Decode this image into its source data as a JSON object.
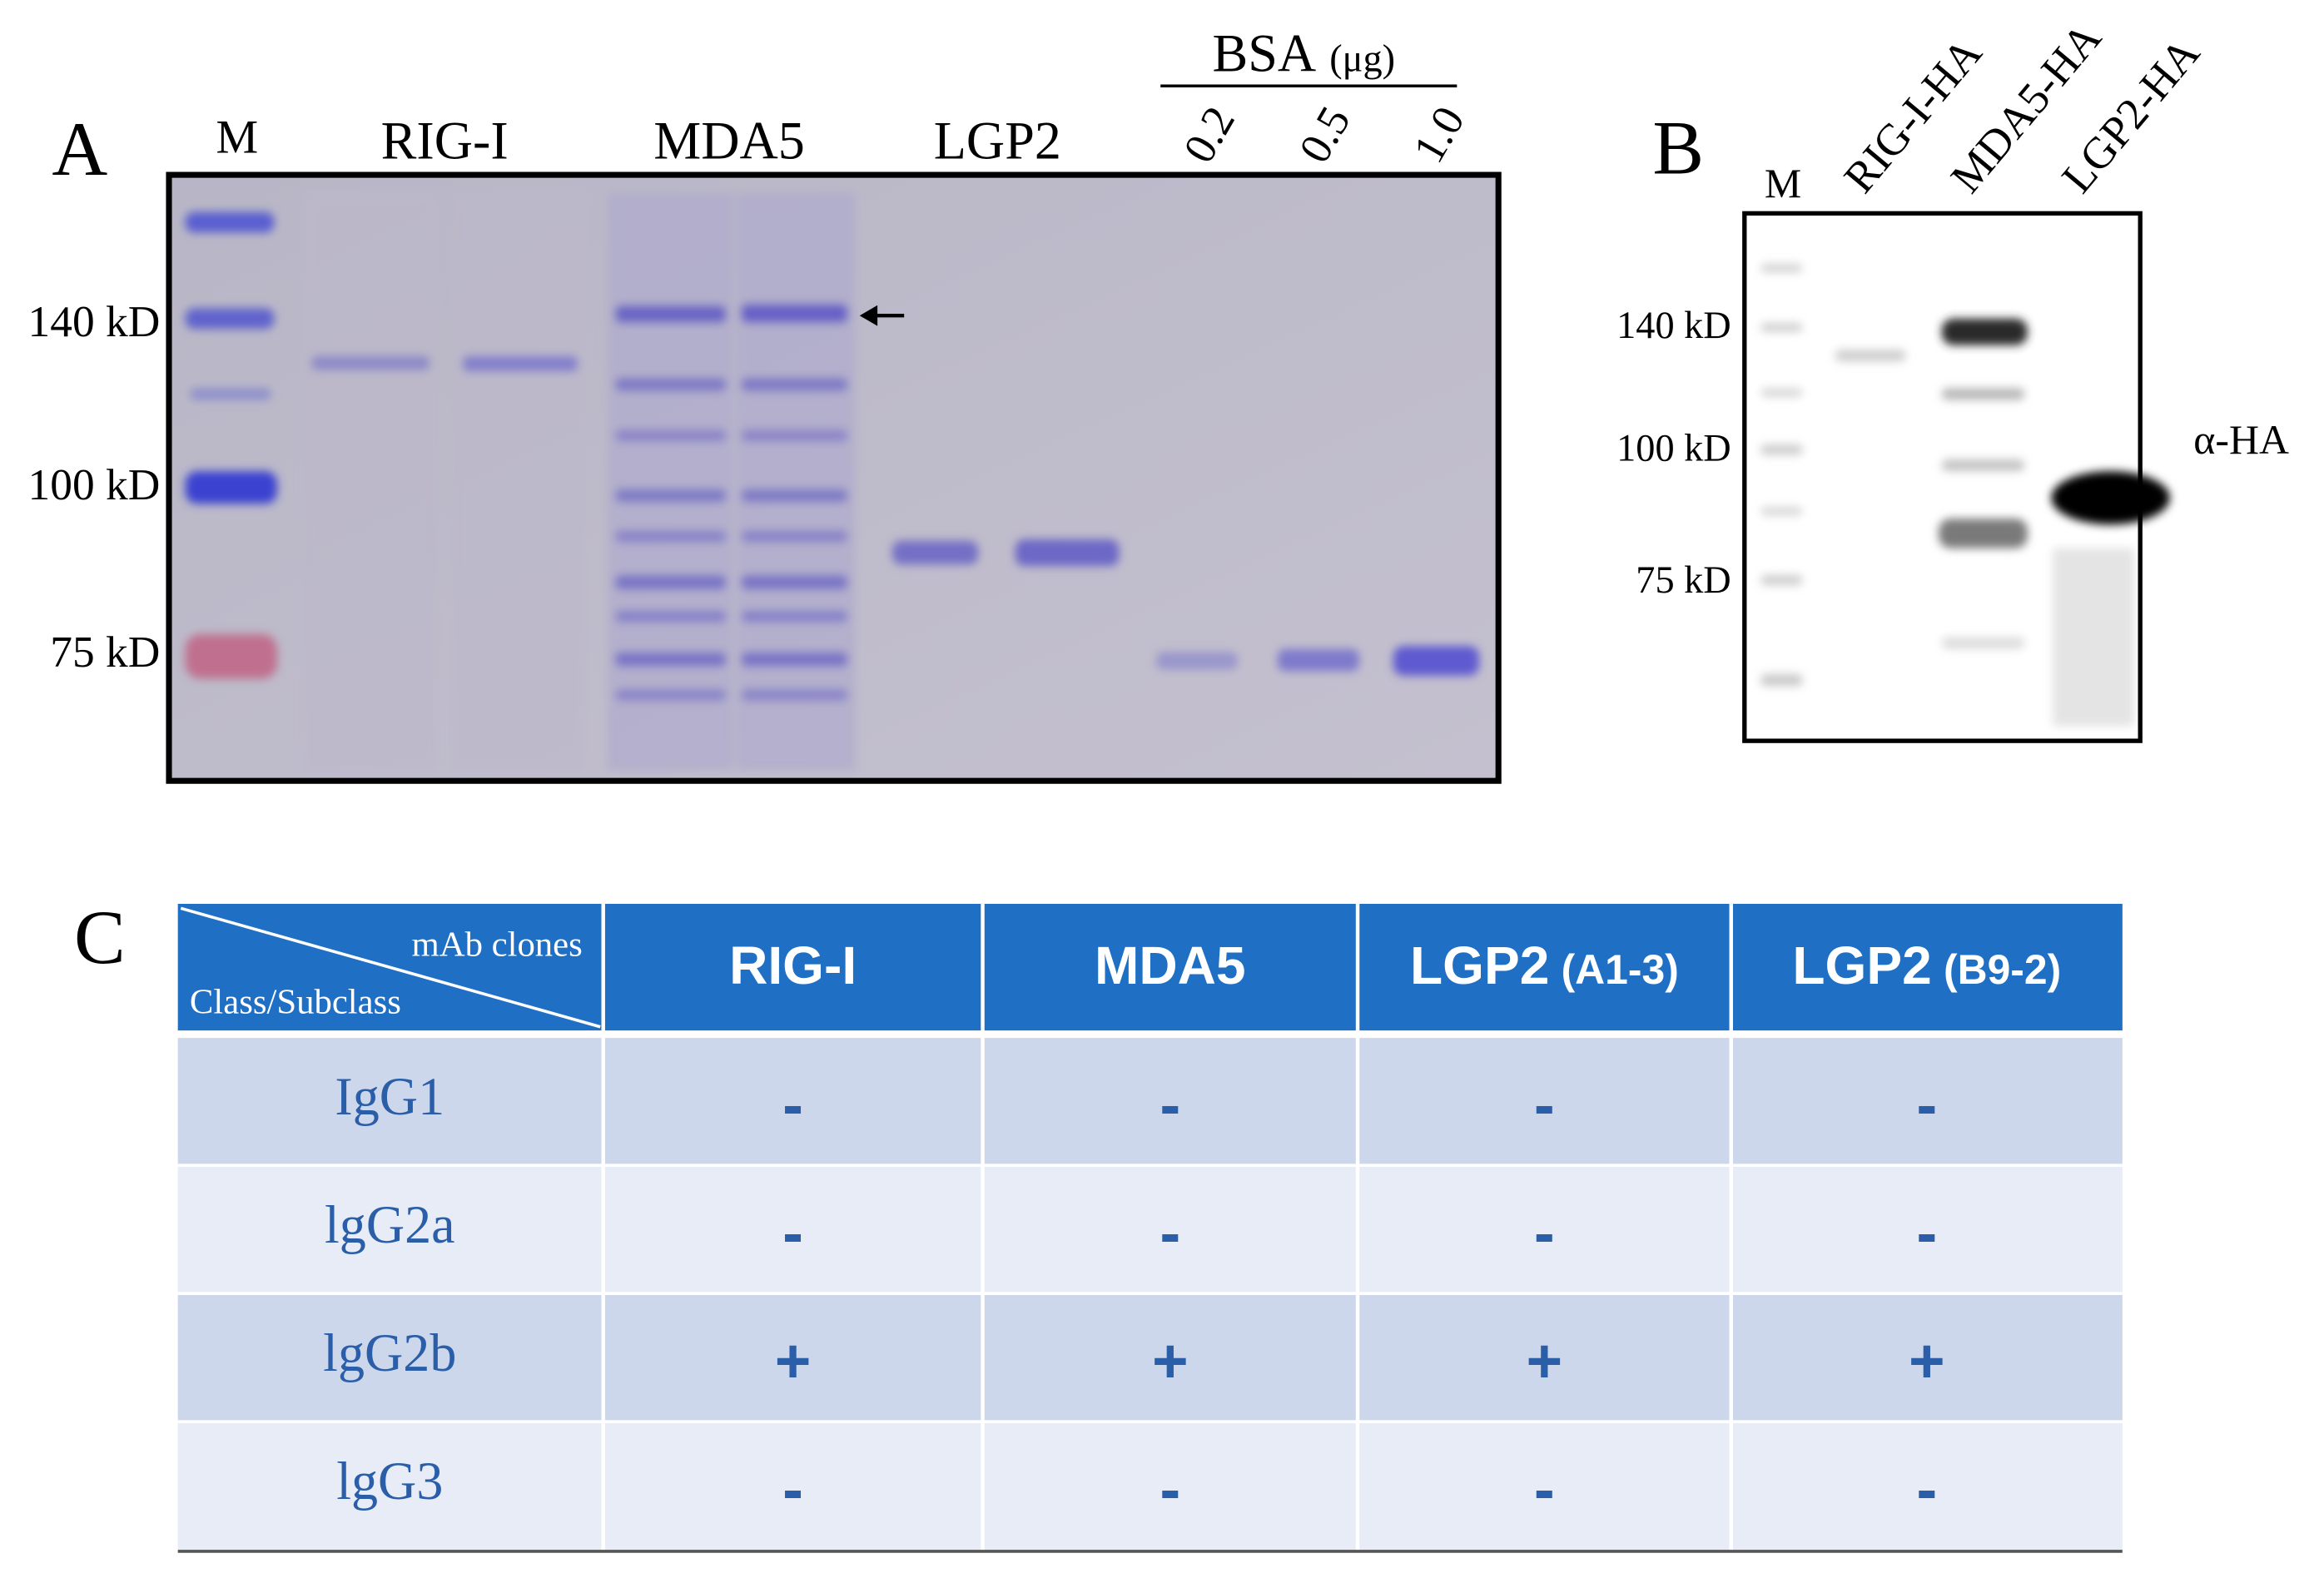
{
  "panel_a": {
    "label": "A",
    "marker": "M",
    "lanes": [
      "RIG-I",
      "MDA5",
      "LGP2"
    ],
    "bsa_title": "BSA",
    "bsa_unit": "(μg)",
    "bsa_amounts": [
      "0.2",
      "0.5",
      "1.0"
    ],
    "mw_labels": [
      "140 kD",
      "100 kD",
      "75 kD"
    ]
  },
  "panel_b": {
    "label": "B",
    "marker": "M",
    "lanes": [
      "RIG-I-HA",
      "MDA5-HA",
      "LGP2-HA"
    ],
    "mw_labels": [
      "140 kD",
      "100 kD",
      "75 kD"
    ],
    "antibody": "α-HA"
  },
  "panel_c": {
    "label": "C",
    "header_top": "mAb clones",
    "header_bottom": "Class/Subclass",
    "columns": [
      {
        "name": "RIG-I"
      },
      {
        "name": "MDA5"
      },
      {
        "name": "LGP2",
        "clone": "(A1-3)"
      },
      {
        "name": "LGP2",
        "clone": "(B9-2)"
      }
    ],
    "rows": [
      {
        "name": "IgG1",
        "cells": [
          "-",
          "-",
          "-",
          "-"
        ]
      },
      {
        "name": "lgG2a",
        "cells": [
          "-",
          "-",
          "-",
          "-"
        ]
      },
      {
        "name": "lgG2b",
        "cells": [
          "+",
          "+",
          "+",
          "+"
        ]
      },
      {
        "name": "lgG3",
        "cells": [
          "-",
          "-",
          "-",
          "-"
        ]
      }
    ]
  }
}
